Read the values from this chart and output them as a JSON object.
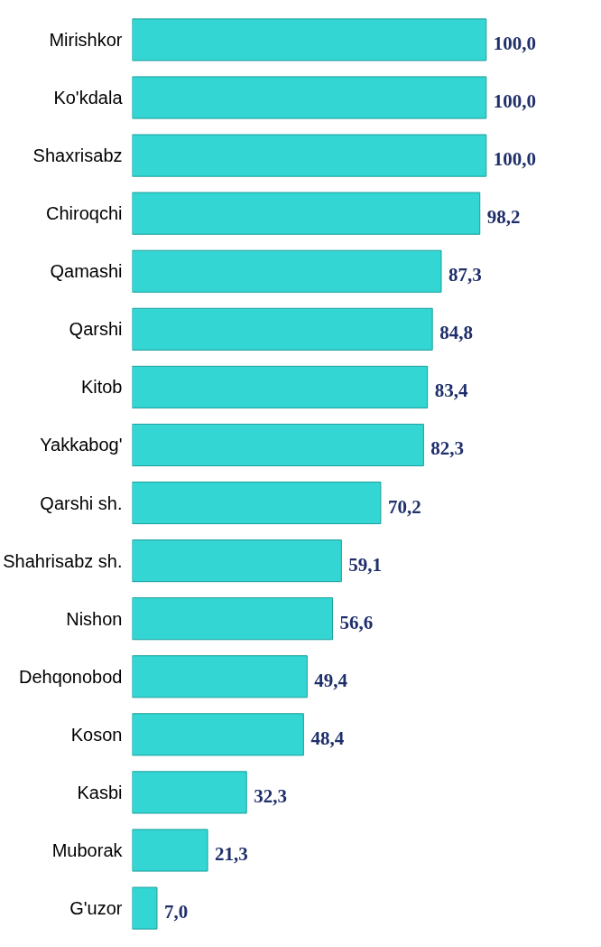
{
  "chart_data": {
    "type": "bar",
    "orientation": "horizontal",
    "categories": [
      "Mirishkor",
      "Ko'kdala",
      "Shaxrisabz",
      "Chiroqchi",
      "Qamashi",
      "Qarshi",
      "Kitob",
      "Yakkabog'",
      "Qarshi sh.",
      "Shahrisabz sh.",
      "Nishon",
      "Dehqonobod",
      "Koson",
      "Kasbi",
      "Muborak",
      "G'uzor"
    ],
    "values": [
      100.0,
      100.0,
      100.0,
      98.2,
      87.3,
      84.8,
      83.4,
      82.3,
      70.2,
      59.1,
      56.6,
      49.4,
      48.4,
      32.3,
      21.3,
      7.0
    ],
    "value_labels": [
      "100,0",
      "100,0",
      "100,0",
      "98,2",
      "87,3",
      "84,8",
      "83,4",
      "82,3",
      "70,2",
      "59,1",
      "56,6",
      "49,4",
      "48,4",
      "32,3",
      "21,3",
      "7,0"
    ],
    "color": "#33d6d2",
    "grid": false
  }
}
